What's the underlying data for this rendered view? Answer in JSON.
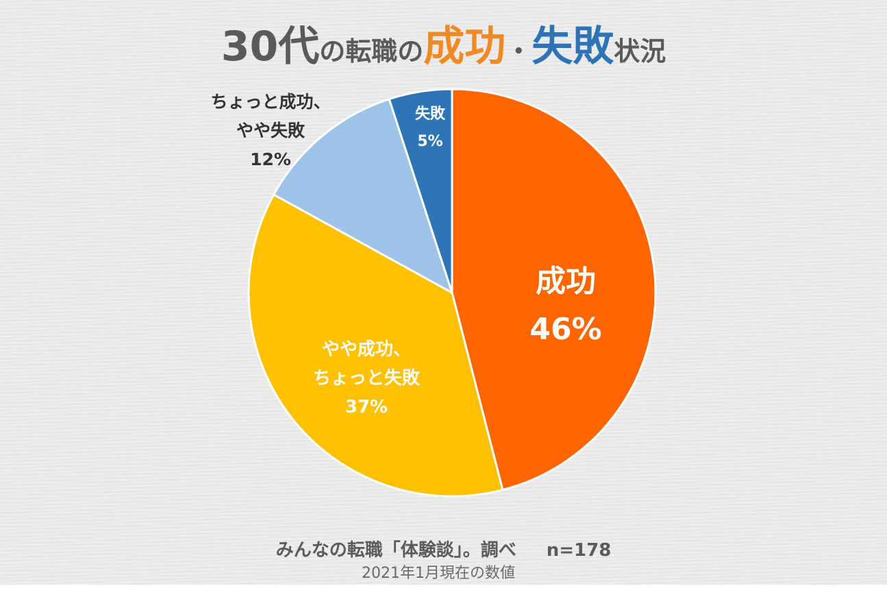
{
  "title": {
    "prefix": "30代",
    "part1": "の転職の",
    "success": "成功",
    "separator": "・",
    "failure": "失敗",
    "suffix": "状況"
  },
  "colors": {
    "title_text": "#5a5a5a",
    "title_success": "#f08a24",
    "title_failure": "#2e74b5"
  },
  "chart_data": {
    "type": "pie",
    "title": "30代の転職の成功・失敗状況",
    "slices": [
      {
        "lines": [
          "成功",
          "46%"
        ],
        "value": 46,
        "color": "#ff6600",
        "label_color": "#ffffff"
      },
      {
        "lines": [
          "やや成功、",
          "ちょっと失敗",
          "37%"
        ],
        "value": 37,
        "color": "#ffc000",
        "label_color": "#ffffff"
      },
      {
        "lines": [
          "ちょっと成功、",
          "やや失敗",
          "12%"
        ],
        "value": 12,
        "color": "#9dc3e6",
        "label_color": "#333333"
      },
      {
        "lines": [
          "失敗",
          "5%"
        ],
        "value": 5,
        "color": "#2e75b6",
        "label_color": "#ffffff"
      }
    ]
  },
  "footer": {
    "source": "みんなの転職「体験談」。調べ",
    "sample": "n=178",
    "date": "2021年1月現在の数値"
  }
}
